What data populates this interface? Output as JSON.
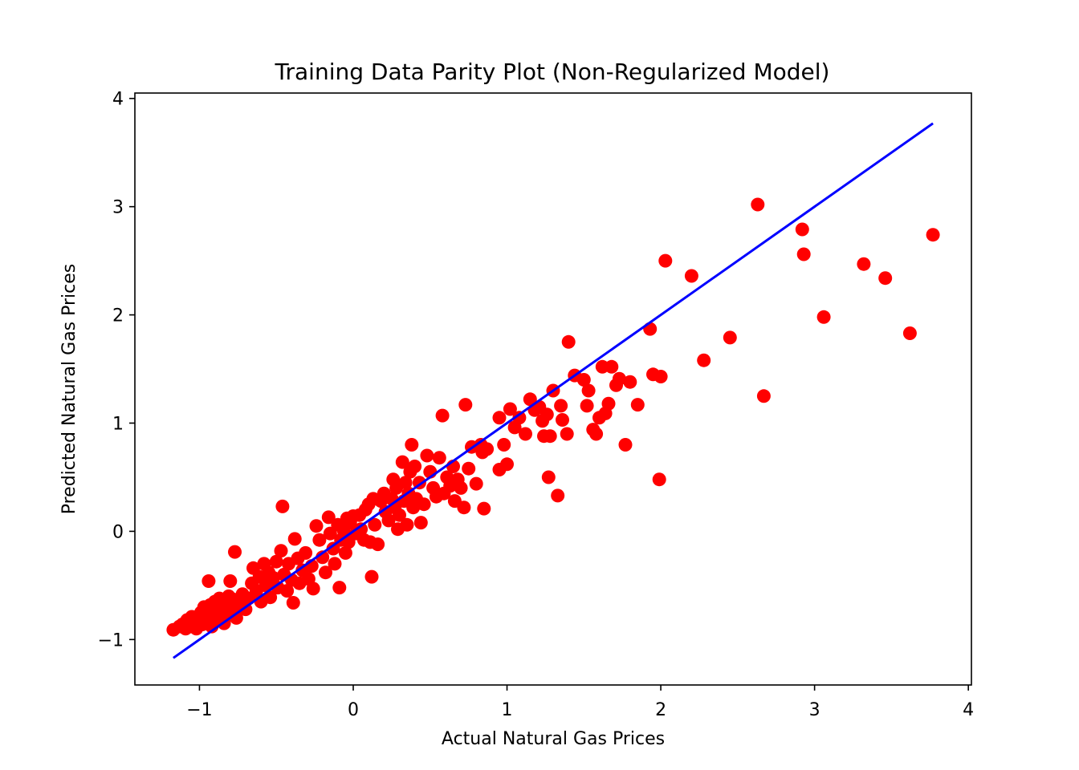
{
  "chart_data": {
    "type": "scatter",
    "title": "Training Data Parity Plot (Non-Regularized Model)",
    "xlabel": "Actual Natural Gas Prices",
    "ylabel": "Predicted Natural Gas Prices",
    "xlim": [
      -1.42,
      4.02
    ],
    "ylim": [
      -1.42,
      4.05
    ],
    "xticks": [
      -1,
      0,
      1,
      2,
      3,
      4
    ],
    "xtick_labels": [
      "−1",
      "0",
      "1",
      "2",
      "3",
      "4"
    ],
    "yticks": [
      -1,
      0,
      1,
      2,
      3,
      4
    ],
    "ytick_labels": [
      "−1",
      "0",
      "1",
      "2",
      "3",
      "4"
    ],
    "grid": false,
    "series": [
      {
        "marker": "circle",
        "color": "#ff0000",
        "points": [
          [
            -1.17,
            -0.91
          ],
          [
            -1.13,
            -0.88
          ],
          [
            -1.11,
            -0.86
          ],
          [
            -1.09,
            -0.9
          ],
          [
            -1.08,
            -0.82
          ],
          [
            -1.06,
            -0.88
          ],
          [
            -1.05,
            -0.79
          ],
          [
            -1.03,
            -0.84
          ],
          [
            -1.02,
            -0.9
          ],
          [
            -1.0,
            -0.81
          ],
          [
            -0.99,
            -0.75
          ],
          [
            -0.98,
            -0.86
          ],
          [
            -0.97,
            -0.7
          ],
          [
            -0.96,
            -0.79
          ],
          [
            -0.95,
            -0.83
          ],
          [
            -0.94,
            -0.77
          ],
          [
            -0.93,
            -0.68
          ],
          [
            -0.92,
            -0.88
          ],
          [
            -0.91,
            -0.74
          ],
          [
            -0.9,
            -0.65
          ],
          [
            -0.89,
            -0.81
          ],
          [
            -0.88,
            -0.72
          ],
          [
            -0.87,
            -0.62
          ],
          [
            -0.86,
            -0.78
          ],
          [
            -0.85,
            -0.69
          ],
          [
            -0.84,
            -0.85
          ],
          [
            -0.83,
            -0.66
          ],
          [
            -0.82,
            -0.74
          ],
          [
            -0.81,
            -0.6
          ],
          [
            -0.8,
            -0.71
          ],
          [
            -0.79,
            -0.77
          ],
          [
            -0.78,
            -0.63
          ],
          [
            -0.94,
            -0.46
          ],
          [
            -0.8,
            -0.46
          ],
          [
            -0.77,
            -0.19
          ],
          [
            -0.76,
            -0.8
          ],
          [
            -0.74,
            -0.68
          ],
          [
            -0.72,
            -0.58
          ],
          [
            -0.7,
            -0.72
          ],
          [
            -0.68,
            -0.62
          ],
          [
            -0.66,
            -0.48
          ],
          [
            -0.65,
            -0.34
          ],
          [
            -0.63,
            -0.55
          ],
          [
            -0.61,
            -0.42
          ],
          [
            -0.6,
            -0.65
          ],
          [
            -0.58,
            -0.3
          ],
          [
            -0.57,
            -0.5
          ],
          [
            -0.55,
            -0.38
          ],
          [
            -0.54,
            -0.61
          ],
          [
            -0.52,
            -0.43
          ],
          [
            -0.5,
            -0.28
          ],
          [
            -0.49,
            -0.52
          ],
          [
            -0.47,
            -0.18
          ],
          [
            -0.46,
            0.23
          ],
          [
            -0.45,
            -0.4
          ],
          [
            -0.43,
            -0.55
          ],
          [
            -0.42,
            -0.3
          ],
          [
            -0.4,
            -0.45
          ],
          [
            -0.39,
            -0.66
          ],
          [
            -0.38,
            -0.07
          ],
          [
            -0.36,
            -0.25
          ],
          [
            -0.35,
            -0.48
          ],
          [
            -0.33,
            -0.36
          ],
          [
            -0.31,
            -0.2
          ],
          [
            -0.29,
            -0.44
          ],
          [
            -0.27,
            -0.32
          ],
          [
            -0.26,
            -0.53
          ],
          [
            -0.24,
            0.05
          ],
          [
            -0.22,
            -0.08
          ],
          [
            -0.2,
            -0.24
          ],
          [
            -0.18,
            -0.38
          ],
          [
            -0.16,
            0.13
          ],
          [
            -0.15,
            -0.02
          ],
          [
            -0.13,
            -0.16
          ],
          [
            -0.12,
            -0.3
          ],
          [
            -0.1,
            0.06
          ],
          [
            -0.09,
            -0.52
          ],
          [
            -0.08,
            -0.08
          ],
          [
            -0.06,
            0.0
          ],
          [
            -0.05,
            -0.2
          ],
          [
            -0.04,
            0.12
          ],
          [
            -0.03,
            -0.1
          ],
          [
            -0.02,
            0.08
          ],
          [
            0.0,
            0.14
          ],
          [
            0.02,
            -0.02
          ],
          [
            0.04,
            0.15
          ],
          [
            0.05,
            0.02
          ],
          [
            0.07,
            -0.08
          ],
          [
            0.08,
            0.2
          ],
          [
            0.1,
            0.25
          ],
          [
            0.11,
            -0.1
          ],
          [
            0.12,
            -0.42
          ],
          [
            0.13,
            0.3
          ],
          [
            0.14,
            0.06
          ],
          [
            0.16,
            -0.12
          ],
          [
            0.18,
            0.28
          ],
          [
            0.2,
            0.35
          ],
          [
            0.21,
            0.18
          ],
          [
            0.23,
            0.1
          ],
          [
            0.25,
            0.3
          ],
          [
            0.26,
            0.48
          ],
          [
            0.27,
            0.22
          ],
          [
            0.28,
            0.4
          ],
          [
            0.29,
            0.02
          ],
          [
            0.3,
            0.15
          ],
          [
            0.32,
            0.64
          ],
          [
            0.33,
            0.28
          ],
          [
            0.34,
            0.45
          ],
          [
            0.35,
            0.06
          ],
          [
            0.36,
            0.35
          ],
          [
            0.37,
            0.55
          ],
          [
            0.38,
            0.8
          ],
          [
            0.39,
            0.22
          ],
          [
            0.4,
            0.6
          ],
          [
            0.41,
            0.3
          ],
          [
            0.43,
            0.45
          ],
          [
            0.44,
            0.08
          ],
          [
            0.46,
            0.25
          ],
          [
            0.48,
            0.7
          ],
          [
            0.5,
            0.55
          ],
          [
            0.52,
            0.4
          ],
          [
            0.54,
            0.32
          ],
          [
            0.56,
            0.68
          ],
          [
            0.58,
            1.07
          ],
          [
            0.59,
            0.35
          ],
          [
            0.61,
            0.5
          ],
          [
            0.63,
            0.42
          ],
          [
            0.65,
            0.6
          ],
          [
            0.66,
            0.28
          ],
          [
            0.68,
            0.48
          ],
          [
            0.7,
            0.4
          ],
          [
            0.72,
            0.22
          ],
          [
            0.73,
            1.17
          ],
          [
            0.75,
            0.58
          ],
          [
            0.77,
            0.78
          ],
          [
            0.8,
            0.44
          ],
          [
            0.83,
            0.8
          ],
          [
            0.84,
            0.73
          ],
          [
            0.85,
            0.21
          ],
          [
            0.87,
            0.76
          ],
          [
            0.95,
            1.05
          ],
          [
            0.95,
            0.57
          ],
          [
            0.98,
            0.8
          ],
          [
            1.0,
            0.62
          ],
          [
            1.02,
            1.13
          ],
          [
            1.05,
            0.96
          ],
          [
            1.08,
            1.05
          ],
          [
            1.12,
            0.9
          ],
          [
            1.15,
            1.22
          ],
          [
            1.18,
            1.12
          ],
          [
            1.21,
            1.15
          ],
          [
            1.23,
            1.02
          ],
          [
            1.24,
            0.88
          ],
          [
            1.26,
            1.08
          ],
          [
            1.27,
            0.5
          ],
          [
            1.28,
            0.88
          ],
          [
            1.3,
            1.3
          ],
          [
            1.33,
            0.33
          ],
          [
            1.35,
            1.16
          ],
          [
            1.36,
            1.03
          ],
          [
            1.39,
            0.9
          ],
          [
            1.4,
            1.75
          ],
          [
            1.44,
            1.44
          ],
          [
            1.5,
            1.4
          ],
          [
            1.52,
            1.16
          ],
          [
            1.53,
            1.3
          ],
          [
            1.56,
            0.94
          ],
          [
            1.58,
            0.9
          ],
          [
            1.6,
            1.05
          ],
          [
            1.62,
            1.52
          ],
          [
            1.64,
            1.09
          ],
          [
            1.66,
            1.18
          ],
          [
            1.68,
            1.52
          ],
          [
            1.71,
            1.35
          ],
          [
            1.73,
            1.41
          ],
          [
            1.77,
            0.8
          ],
          [
            1.8,
            1.38
          ],
          [
            1.85,
            1.17
          ],
          [
            1.93,
            1.87
          ],
          [
            1.95,
            1.45
          ],
          [
            1.99,
            0.48
          ],
          [
            2.0,
            1.43
          ],
          [
            2.03,
            2.5
          ],
          [
            2.2,
            2.36
          ],
          [
            2.28,
            1.58
          ],
          [
            2.45,
            1.79
          ],
          [
            2.63,
            3.02
          ],
          [
            2.67,
            1.25
          ],
          [
            2.92,
            2.79
          ],
          [
            2.93,
            2.56
          ],
          [
            3.06,
            1.98
          ],
          [
            3.32,
            2.47
          ],
          [
            3.46,
            2.34
          ],
          [
            3.62,
            1.83
          ],
          [
            3.77,
            2.74
          ]
        ]
      },
      {
        "type": "line",
        "color": "#0000ff",
        "x": [
          -1.17,
          3.77
        ],
        "y": [
          -1.17,
          3.77
        ]
      }
    ]
  }
}
